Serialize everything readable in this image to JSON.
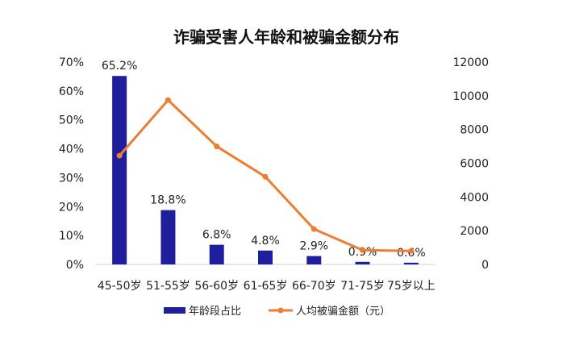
{
  "chart_data": {
    "type": "bar+line",
    "title": "诈骗受害人年龄和被骗金额分布",
    "categories": [
      "45-50岁",
      "51-55岁",
      "56-60岁",
      "61-65岁",
      "66-70岁",
      "71-75岁",
      "75岁以上"
    ],
    "series": [
      {
        "name": "年龄段占比",
        "type": "bar",
        "axis": "left",
        "values": [
          65.2,
          18.8,
          6.8,
          4.8,
          2.9,
          0.9,
          0.6
        ],
        "labels": [
          "65.2%",
          "18.8%",
          "6.8%",
          "4.8%",
          "2.9%",
          "0.9%",
          "0.6%"
        ],
        "color": "#1f1f9e"
      },
      {
        "name": "人均被骗金额（元）",
        "type": "line",
        "axis": "right",
        "values": [
          6450,
          9750,
          7000,
          5200,
          2100,
          850,
          800
        ],
        "color": "#ed7d31"
      }
    ],
    "y_left": {
      "ylim": [
        0,
        70
      ],
      "ticks": [
        "0%",
        "10%",
        "20%",
        "30%",
        "40%",
        "50%",
        "60%",
        "70%"
      ]
    },
    "y_right": {
      "ylim": [
        0,
        12000
      ],
      "ticks": [
        "0",
        "2000",
        "4000",
        "6000",
        "8000",
        "10000",
        "12000"
      ]
    },
    "grid": false,
    "legend_position": "bottom"
  }
}
